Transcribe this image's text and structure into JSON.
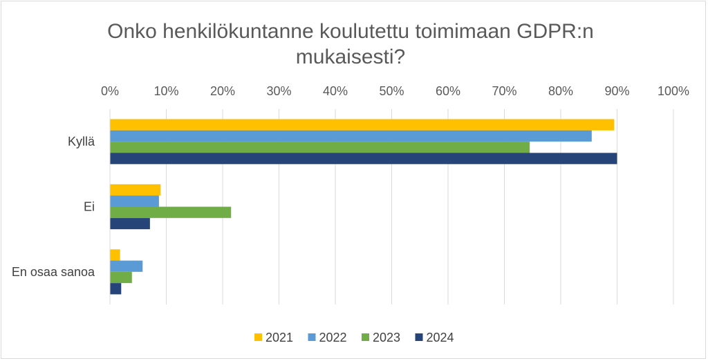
{
  "chart_data": {
    "type": "bar",
    "orientation": "horizontal",
    "title_lines": [
      "Onko henkilökuntanne koulutettu toimimaan GDPR:n",
      "mukaisesti?"
    ],
    "categories": [
      "Kyllä",
      "Ei",
      "En osaa sanoa"
    ],
    "series": [
      {
        "name": "2021",
        "color": "#FFC000",
        "values": [
          89.5,
          9.0,
          1.8
        ]
      },
      {
        "name": "2022",
        "color": "#5B9BD5",
        "values": [
          85.5,
          8.7,
          5.8
        ]
      },
      {
        "name": "2023",
        "color": "#70AD47",
        "values": [
          74.5,
          21.5,
          3.9
        ]
      },
      {
        "name": "2024",
        "color": "#264478",
        "values": [
          90.0,
          7.1,
          2.0
        ]
      }
    ],
    "xlim": [
      0,
      100
    ],
    "xticks": [
      "0%",
      "10%",
      "20%",
      "30%",
      "40%",
      "50%",
      "60%",
      "70%",
      "80%",
      "90%",
      "100%"
    ],
    "grid": true,
    "legend_position": "bottom"
  }
}
